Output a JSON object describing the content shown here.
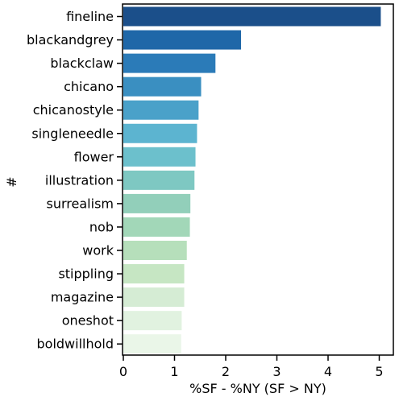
{
  "chart_data": {
    "type": "bar",
    "orientation": "horizontal",
    "categories": [
      "fineline",
      "blackandgrey",
      "blackclaw",
      "chicano",
      "chicanostyle",
      "singleneedle",
      "flower",
      "illustration",
      "surrealism",
      "nob",
      "work",
      "stippling",
      "magazine",
      "oneshot",
      "boldwillhold"
    ],
    "values": [
      5.03,
      2.3,
      1.8,
      1.52,
      1.47,
      1.44,
      1.41,
      1.39,
      1.31,
      1.3,
      1.24,
      1.19,
      1.19,
      1.14,
      1.13
    ],
    "xlabel": "%SF - %NY (SF > NY)",
    "ylabel": "#",
    "xlim": [
      0,
      5.3
    ],
    "xticks": [
      "0",
      "1",
      "2",
      "3",
      "4",
      "5"
    ],
    "grid": false,
    "colors": [
      "#1b4f8a",
      "#1f67a8",
      "#2b7bb8",
      "#3a8fc1",
      "#4aa1c9",
      "#5cb4d0",
      "#6cc0cc",
      "#7ec8c2",
      "#92cfba",
      "#a2d7b8",
      "#b6dfbb",
      "#c6e6c3",
      "#d5ecd4",
      "#e1f2e0",
      "#eaf6e8"
    ]
  }
}
